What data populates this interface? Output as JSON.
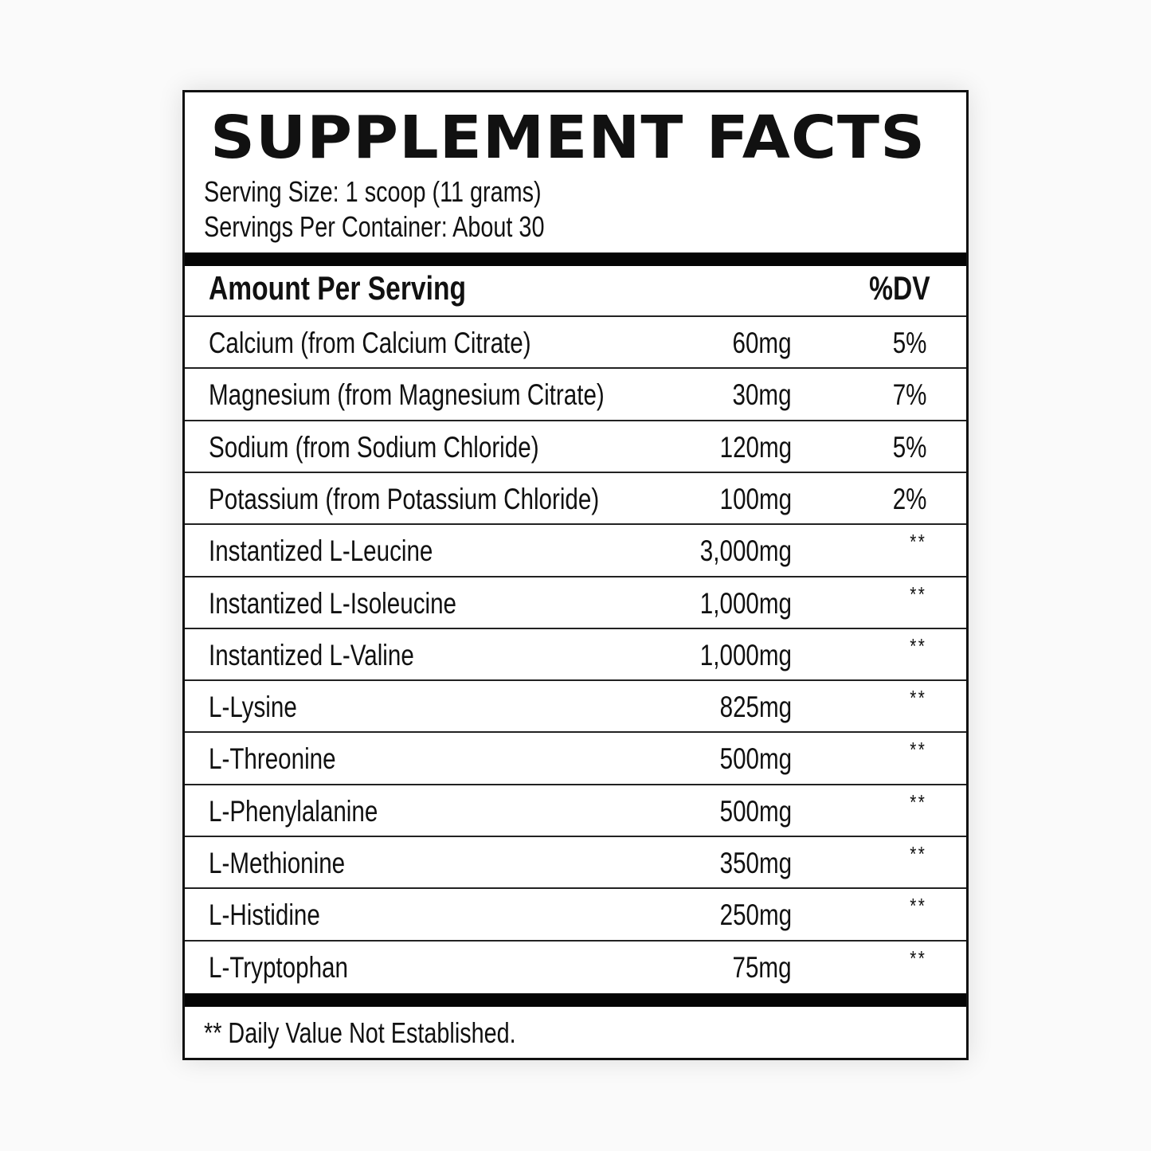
{
  "title": "SUPPLEMENT FACTS",
  "serving_size": "Serving Size: 1 scoop (11 grams)",
  "servings_per_container": "Servings Per Container: About 30",
  "header": {
    "amount_label": "Amount Per Serving",
    "dv_label": "%DV"
  },
  "rows": [
    {
      "name": "Calcium (from Calcium Citrate)",
      "amount": "60mg",
      "dv": "5%"
    },
    {
      "name": "Magnesium (from Magnesium Citrate)",
      "amount": "30mg",
      "dv": "7%"
    },
    {
      "name": "Sodium (from Sodium Chloride)",
      "amount": "120mg",
      "dv": "5%"
    },
    {
      "name": "Potassium (from Potassium Chloride)",
      "amount": "100mg",
      "dv": "2%"
    },
    {
      "name": "Instantized L-Leucine",
      "amount": "3,000mg",
      "dv": "**"
    },
    {
      "name": "Instantized L-Isoleucine",
      "amount": "1,000mg",
      "dv": "**"
    },
    {
      "name": "Instantized L-Valine",
      "amount": "1,000mg",
      "dv": "**"
    },
    {
      "name": "L-Lysine",
      "amount": "825mg",
      "dv": "**"
    },
    {
      "name": "L-Threonine",
      "amount": "500mg",
      "dv": "**"
    },
    {
      "name": "L-Phenylalanine",
      "amount": "500mg",
      "dv": "**"
    },
    {
      "name": "L-Methionine",
      "amount": "350mg",
      "dv": "**"
    },
    {
      "name": "L-Histidine",
      "amount": "250mg",
      "dv": "**"
    },
    {
      "name": "L-Tryptophan",
      "amount": "75mg",
      "dv": "**"
    }
  ],
  "footnote": "** Daily Value Not Established."
}
